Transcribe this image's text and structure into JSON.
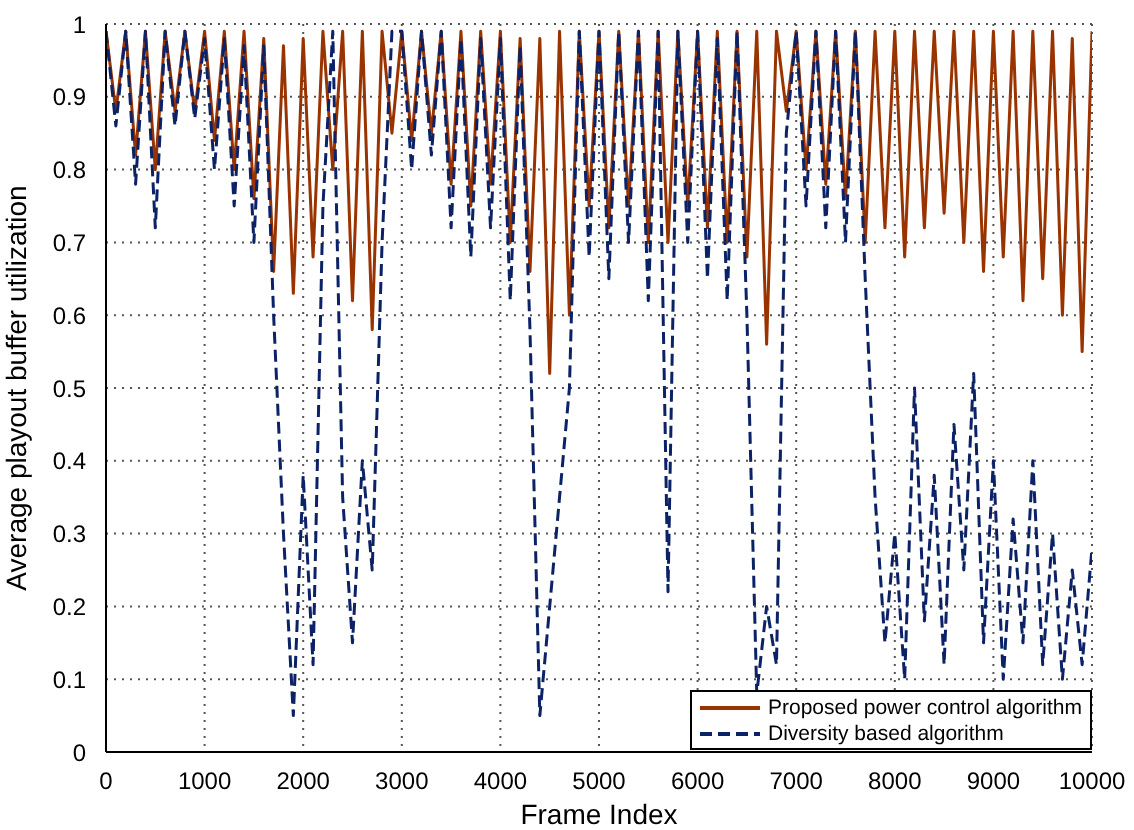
{
  "chart_data": {
    "type": "line",
    "xlabel": "Frame Index",
    "ylabel": "Average playout buffer utilization",
    "x": [
      0,
      100,
      200,
      300,
      400,
      500,
      600,
      700,
      800,
      900,
      1000,
      1100,
      1200,
      1300,
      1400,
      1500,
      1600,
      1700,
      1800,
      1900,
      2000,
      2100,
      2200,
      2300,
      2400,
      2500,
      2600,
      2700,
      2800,
      2900,
      3000,
      3100,
      3200,
      3300,
      3400,
      3500,
      3600,
      3700,
      3800,
      3900,
      4000,
      4100,
      4200,
      4300,
      4400,
      4500,
      4600,
      4700,
      4800,
      4900,
      5000,
      5100,
      5200,
      5300,
      5400,
      5500,
      5600,
      5700,
      5800,
      5900,
      6000,
      6100,
      6200,
      6300,
      6400,
      6500,
      6600,
      6700,
      6800,
      6900,
      7000,
      7100,
      7200,
      7300,
      7400,
      7500,
      7600,
      7700,
      7800,
      7900,
      8000,
      8100,
      8200,
      8300,
      8400,
      8500,
      8600,
      8700,
      8800,
      8900,
      9000,
      9100,
      9200,
      9300,
      9400,
      9500,
      9600,
      9700,
      9800,
      9900,
      10000
    ],
    "series": [
      {
        "name": "Proposed power control algorithm",
        "color": "#993300",
        "line_style": "solid",
        "values": [
          0.99,
          0.88,
          0.99,
          0.82,
          0.99,
          0.8,
          0.99,
          0.88,
          0.99,
          0.88,
          0.99,
          0.84,
          0.99,
          0.8,
          0.99,
          0.76,
          0.98,
          0.66,
          0.97,
          0.63,
          0.98,
          0.68,
          0.99,
          0.8,
          0.99,
          0.62,
          0.99,
          0.58,
          0.99,
          0.85,
          0.99,
          0.84,
          0.99,
          0.85,
          0.99,
          0.78,
          0.99,
          0.75,
          0.99,
          0.78,
          0.99,
          0.7,
          0.98,
          0.66,
          0.98,
          0.52,
          0.99,
          0.6,
          0.99,
          0.75,
          0.99,
          0.72,
          0.99,
          0.75,
          0.99,
          0.7,
          0.99,
          0.7,
          0.99,
          0.75,
          0.99,
          0.72,
          0.99,
          0.7,
          0.99,
          0.68,
          0.99,
          0.56,
          0.99,
          0.88,
          0.99,
          0.8,
          0.99,
          0.78,
          0.99,
          0.76,
          0.99,
          0.7,
          0.99,
          0.72,
          0.99,
          0.68,
          0.99,
          0.72,
          0.99,
          0.74,
          0.99,
          0.7,
          0.99,
          0.66,
          0.99,
          0.68,
          0.99,
          0.62,
          0.99,
          0.65,
          0.99,
          0.6,
          0.98,
          0.55,
          0.99
        ]
      },
      {
        "name": "Diversity based algorithm",
        "color": "#0c2266",
        "line_style": "dashed",
        "values": [
          0.99,
          0.86,
          0.99,
          0.78,
          0.99,
          0.72,
          0.99,
          0.86,
          0.99,
          0.87,
          0.98,
          0.8,
          0.98,
          0.75,
          0.97,
          0.7,
          0.97,
          0.6,
          0.3,
          0.05,
          0.38,
          0.12,
          0.75,
          0.99,
          0.35,
          0.15,
          0.4,
          0.25,
          0.7,
          0.99,
          0.99,
          0.8,
          0.99,
          0.82,
          0.99,
          0.72,
          0.98,
          0.68,
          0.98,
          0.72,
          0.98,
          0.62,
          0.97,
          0.58,
          0.05,
          0.2,
          0.35,
          0.5,
          0.99,
          0.68,
          0.99,
          0.65,
          0.99,
          0.7,
          0.99,
          0.62,
          0.99,
          0.22,
          0.99,
          0.7,
          0.99,
          0.65,
          0.98,
          0.62,
          0.99,
          0.6,
          0.08,
          0.2,
          0.12,
          0.85,
          0.99,
          0.75,
          0.99,
          0.72,
          0.99,
          0.7,
          0.99,
          0.65,
          0.35,
          0.15,
          0.3,
          0.1,
          0.5,
          0.18,
          0.38,
          0.12,
          0.45,
          0.25,
          0.52,
          0.15,
          0.4,
          0.1,
          0.32,
          0.15,
          0.4,
          0.12,
          0.3,
          0.1,
          0.25,
          0.12,
          0.28
        ]
      }
    ],
    "xlim": [
      0,
      10000
    ],
    "xticks": [
      0,
      1000,
      2000,
      3000,
      4000,
      5000,
      6000,
      7000,
      8000,
      9000,
      10000
    ],
    "ylim": [
      0,
      1
    ],
    "yticks": [
      0,
      0.1,
      0.2,
      0.3,
      0.4,
      0.5,
      0.6,
      0.7,
      0.8,
      0.9,
      1
    ],
    "grid": true,
    "legend": "bottom right"
  }
}
